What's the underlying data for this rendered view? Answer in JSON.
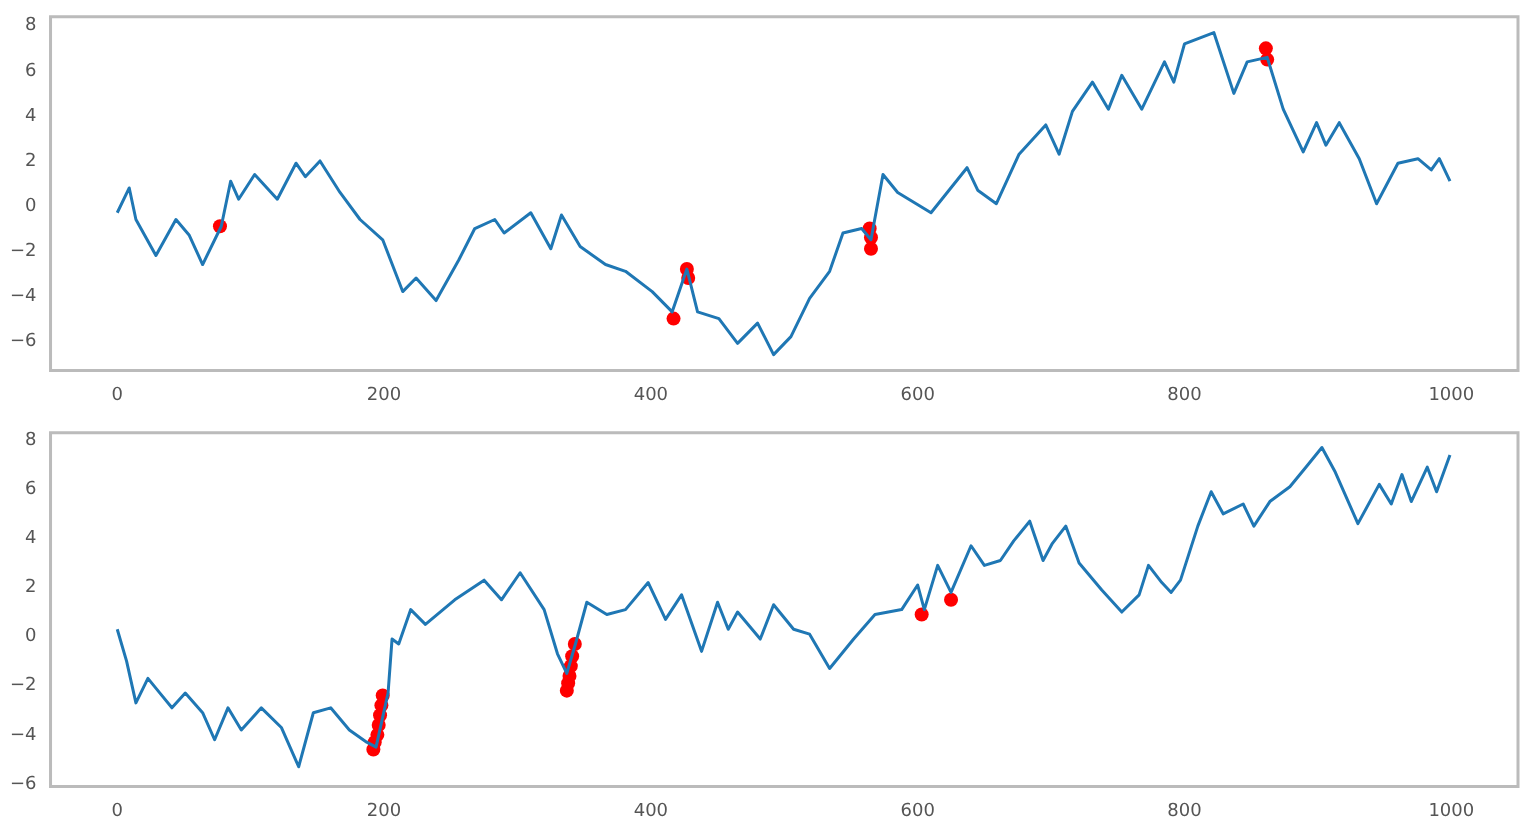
{
  "chart_data": [
    {
      "type": "line",
      "xlim": [
        -50,
        1050
      ],
      "xticks": [
        0,
        200,
        400,
        600,
        800,
        1000
      ],
      "ylim": [
        -7.3,
        8.4
      ],
      "yticks": [
        {
          "value": -6,
          "label": "−6"
        },
        {
          "value": -4,
          "label": "−4"
        },
        {
          "value": -2,
          "label": "−2"
        },
        0,
        2,
        4,
        6,
        8
      ],
      "grid": false,
      "legend": false,
      "series": [
        {
          "type": "line",
          "color": "#1f77b4",
          "marker": "none",
          "x": [
            0,
            9,
            14,
            29,
            44,
            54,
            64,
            78,
            85,
            91,
            103,
            120,
            134,
            141,
            152,
            167,
            182,
            199,
            214,
            224,
            239,
            256,
            268,
            283,
            290,
            310,
            325,
            333,
            347,
            366,
            381,
            401,
            416,
            427,
            435,
            451,
            465,
            480,
            492,
            505,
            519,
            534,
            544,
            558,
            565,
            574,
            585,
            610,
            637,
            645,
            659,
            676,
            696,
            706,
            716,
            731,
            743,
            753,
            768,
            785,
            792,
            800,
            822,
            837,
            847,
            862,
            874,
            889,
            899,
            906,
            916,
            931,
            944,
            960,
            975,
            985,
            991,
            999
          ],
          "values": [
            -0.3,
            0.8,
            -0.6,
            -2.2,
            -0.6,
            -1.3,
            -2.6,
            -0.9,
            1.1,
            0.3,
            1.4,
            0.3,
            1.9,
            1.3,
            2.0,
            0.6,
            -0.6,
            -1.5,
            -3.8,
            -3.2,
            -4.2,
            -2.4,
            -1.0,
            -0.6,
            -1.2,
            -0.3,
            -1.9,
            -0.4,
            -1.8,
            -2.6,
            -2.9,
            -3.8,
            -4.7,
            -2.8,
            -4.7,
            -5.0,
            -6.1,
            -5.2,
            -6.6,
            -5.8,
            -4.1,
            -2.9,
            -1.2,
            -1.0,
            -1.5,
            1.4,
            0.6,
            -0.3,
            1.7,
            0.7,
            0.1,
            2.3,
            3.6,
            2.3,
            4.2,
            5.5,
            4.3,
            5.8,
            4.3,
            6.4,
            5.5,
            7.2,
            7.7,
            5.0,
            6.4,
            6.6,
            4.3,
            2.4,
            3.7,
            2.7,
            3.7,
            2.1,
            0.1,
            1.9,
            2.1,
            1.6,
            2.1,
            1.1
          ]
        },
        {
          "type": "scatter",
          "color": "#ff0000",
          "marker": "circle",
          "x": [
            77,
            417,
            427,
            428,
            564,
            565,
            565,
            861,
            862
          ],
          "values": [
            -0.9,
            -5.0,
            -2.8,
            -3.2,
            -1.0,
            -1.4,
            -1.9,
            7.0,
            6.5
          ]
        }
      ]
    },
    {
      "type": "line",
      "xlim": [
        -50,
        1050
      ],
      "xticks": [
        0,
        200,
        400,
        600,
        800,
        1000
      ],
      "ylim": [
        -6.1,
        8.3
      ],
      "yticks": [
        {
          "value": -6,
          "label": "−6"
        },
        {
          "value": -4,
          "label": "−4"
        },
        {
          "value": -2,
          "label": "−2"
        },
        0,
        2,
        4,
        6,
        8
      ],
      "grid": false,
      "legend": false,
      "series": [
        {
          "type": "line",
          "color": "#1f77b4",
          "marker": "none",
          "x": [
            0,
            7,
            14,
            23,
            32,
            41,
            51,
            64,
            73,
            83,
            93,
            108,
            123,
            136,
            147,
            160,
            174,
            187,
            194,
            203,
            206,
            211,
            220,
            231,
            253,
            275,
            288,
            302,
            320,
            330,
            337,
            344,
            352,
            367,
            381,
            398,
            411,
            423,
            438,
            450,
            458,
            465,
            482,
            492,
            507,
            519,
            534,
            552,
            568,
            588,
            600,
            605,
            615,
            625,
            640,
            650,
            662,
            672,
            684,
            694,
            701,
            711,
            721,
            738,
            753,
            766,
            773,
            783,
            790,
            797,
            810,
            820,
            829,
            844,
            852,
            864,
            879,
            891,
            903,
            913,
            930,
            946,
            955,
            963,
            970,
            982,
            989,
            999
          ],
          "values": [
            0.3,
            -1.0,
            -2.7,
            -1.7,
            -2.3,
            -2.9,
            -2.3,
            -3.1,
            -4.2,
            -2.9,
            -3.8,
            -2.9,
            -3.7,
            -5.3,
            -3.1,
            -2.9,
            -3.8,
            -4.3,
            -4.5,
            -2.3,
            -0.1,
            -0.3,
            1.1,
            0.5,
            1.5,
            2.3,
            1.5,
            2.6,
            1.1,
            -0.7,
            -1.5,
            -0.2,
            1.4,
            0.9,
            1.1,
            2.2,
            0.7,
            1.7,
            -0.6,
            1.4,
            0.3,
            1.0,
            -0.1,
            1.3,
            0.3,
            0.1,
            -1.3,
            -0.1,
            0.9,
            1.1,
            2.1,
            1.1,
            2.9,
            1.8,
            3.7,
            2.9,
            3.1,
            3.9,
            4.7,
            3.1,
            3.8,
            4.5,
            3.0,
            1.9,
            1.0,
            1.7,
            2.9,
            2.2,
            1.8,
            2.3,
            4.5,
            5.9,
            5.0,
            5.4,
            4.5,
            5.5,
            6.1,
            6.9,
            7.7,
            6.7,
            4.6,
            6.2,
            5.4,
            6.6,
            5.5,
            6.9,
            5.9,
            7.4
          ]
        },
        {
          "type": "scatter",
          "color": "#ff0000",
          "marker": "circle",
          "x": [
            192,
            193,
            195,
            196,
            197,
            198,
            199,
            337,
            338,
            339,
            340,
            341,
            343,
            603,
            625
          ],
          "values": [
            -4.6,
            -4.3,
            -4.0,
            -3.6,
            -3.2,
            -2.8,
            -2.4,
            -2.2,
            -1.9,
            -1.6,
            -1.2,
            -0.8,
            -0.3,
            0.9,
            1.5
          ]
        }
      ]
    }
  ]
}
